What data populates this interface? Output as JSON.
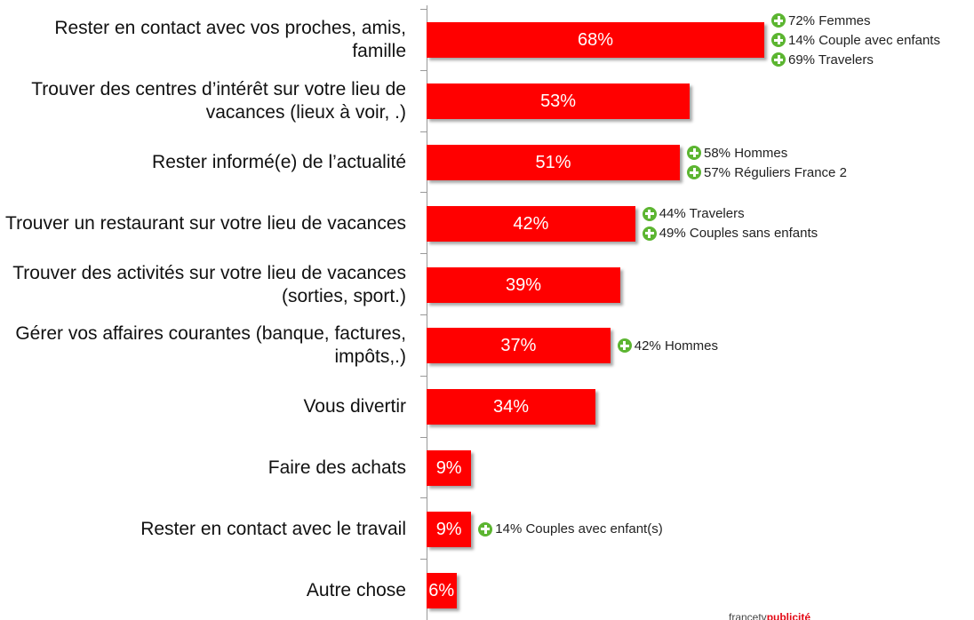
{
  "chart_data": {
    "type": "bar",
    "orientation": "horizontal",
    "categories": [
      "Rester en contact avec vos proches, amis, famille",
      "Trouver des centres d’intérêt sur votre lieu de vacances (lieux à voir, .)",
      "Rester informé(e) de l’actualité",
      "Trouver un restaurant sur votre lieu de vacances",
      "Trouver des activités sur votre lieu de vacances (sorties, sport.)",
      "Gérer vos affaires courantes (banque, factures, impôts,.)",
      "Vous divertir",
      "Faire des achats",
      "Rester en contact avec le travail",
      "Autre chose"
    ],
    "values": [
      68,
      53,
      51,
      42,
      39,
      37,
      34,
      9,
      9,
      6
    ],
    "value_labels": [
      "68%",
      "53%",
      "51%",
      "42%",
      "39%",
      "37%",
      "34%",
      "9%",
      "9%",
      "6%"
    ],
    "color": "#ff0000",
    "annotations": [
      [
        "72% Femmes",
        "14% Couple avec enfants",
        "69% Travelers"
      ],
      [],
      [
        "58% Hommes",
        "57% Réguliers France 2"
      ],
      [
        "44% Travelers",
        "49% Couples sans enfants"
      ],
      [],
      [
        "42% Hommes"
      ],
      [],
      [],
      [
        "14% Couples avec enfant(s)"
      ],
      []
    ],
    "footer": [
      "francetv",
      "publicité"
    ]
  }
}
